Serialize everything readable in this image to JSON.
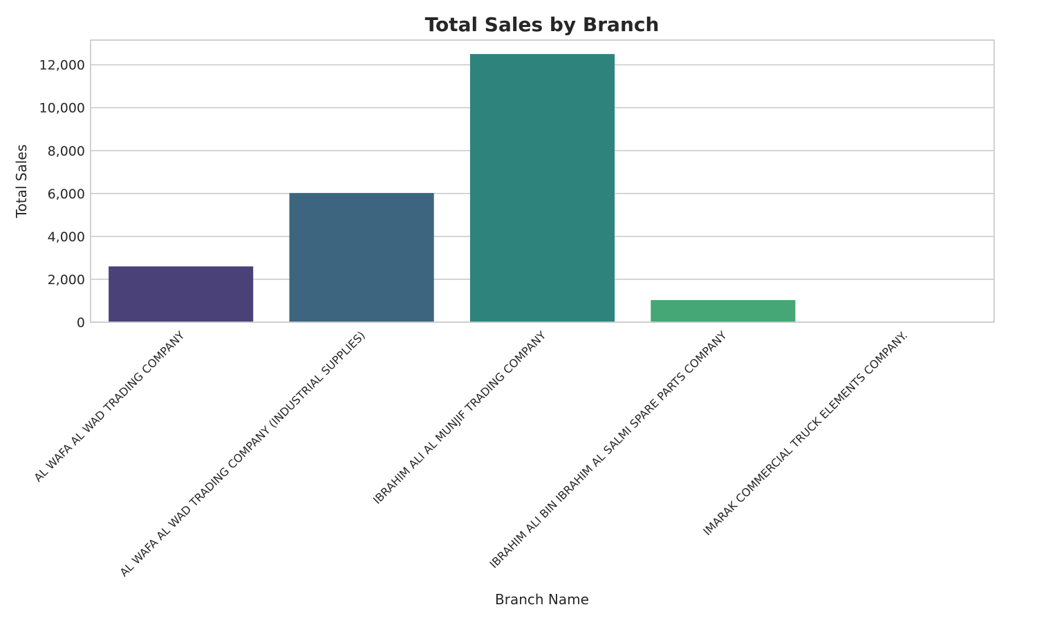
{
  "chart_data": {
    "type": "bar",
    "title": "Total Sales by Branch",
    "xlabel": "Branch Name",
    "ylabel": "Total Sales",
    "categories": [
      "AL WAFA AL WAD TRADING COMPANY",
      "AL WAFA AL WAD TRADING COMPANY (INDUSTRIAL SUPPLIES)",
      "IBRAHIM ALI AL MUNJIF TRADING COMPANY",
      "IBRAHIM ALI BIN IBRAHIM AL SALMI SPARE PARTS COMPANY",
      "IMARAK COMMERCIAL TRUCK ELEMENTS COMPANY."
    ],
    "values": [
      2600,
      6020,
      12500,
      1030,
      0
    ],
    "colors": [
      "#4a4178",
      "#3d657f",
      "#2e837d",
      "#44a775",
      "#7ccd5e"
    ],
    "ylim": [
      0,
      13150
    ],
    "yticks": [
      0,
      2000,
      4000,
      6000,
      8000,
      10000,
      12000
    ],
    "ytick_labels": [
      "0",
      "2,000",
      "4,000",
      "6,000",
      "8,000",
      "10,000",
      "12,000"
    ],
    "grid": true,
    "legend": null
  }
}
